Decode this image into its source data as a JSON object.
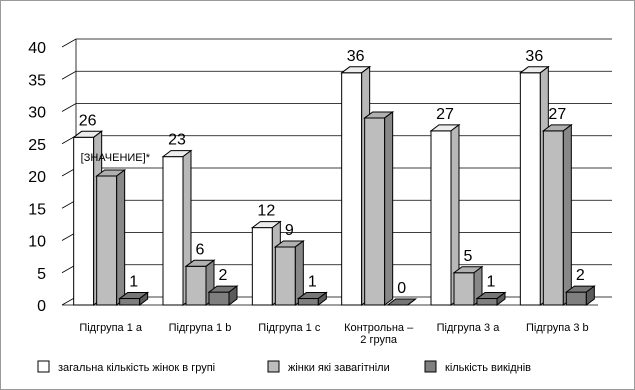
{
  "chart_data": {
    "type": "bar",
    "title": "",
    "xlabel": "",
    "ylabel": "",
    "ylim": [
      0,
      40
    ],
    "yticks": [
      0,
      5,
      10,
      15,
      20,
      25,
      30,
      35,
      40
    ],
    "grid": true,
    "legend_position": "bottom",
    "style": "3d-clustered-column",
    "categories": [
      "Підгрупа 1 a",
      "Підгрупа 1 b",
      "Підгрупа 1 c",
      "Контрольна –\n2 група",
      "Підгрупа 3 a",
      "Підгрупа 3 b"
    ],
    "series": [
      {
        "name": "загальна кількість жінок в групі",
        "color": "#ffffff",
        "values": [
          26,
          23,
          12,
          36,
          27,
          36
        ],
        "labels": [
          "26",
          "23",
          "12",
          "36",
          "27",
          "36"
        ]
      },
      {
        "name": "жінки які завагітніли",
        "color": "#bdbdbd",
        "values": [
          20,
          6,
          9,
          29,
          5,
          27
        ],
        "labels": [
          "[ЗНАЧЕНИЕ]*",
          "6",
          "9",
          "",
          "5",
          "27"
        ]
      },
      {
        "name": "кількість викіднів",
        "color": "#7f7f7f",
        "values": [
          1,
          2,
          1,
          0,
          1,
          2
        ],
        "labels": [
          "1",
          "2",
          "1",
          "0",
          "1",
          "2"
        ]
      }
    ]
  }
}
